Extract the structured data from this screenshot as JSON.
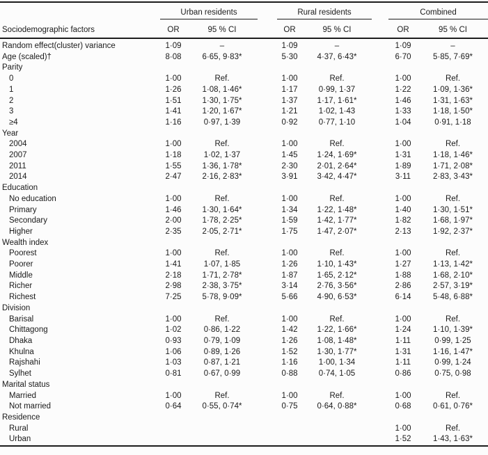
{
  "colors": {
    "rule": "#1c1c1c",
    "text": "#1a1a1a",
    "background": "#fcfcfc"
  },
  "table": {
    "groups": [
      "Urban residents",
      "Rural residents",
      "Combined"
    ],
    "header": {
      "factor_label": "Sociodemographic factors",
      "or_label": "OR",
      "ci_label": "95 % CI"
    },
    "rows": [
      {
        "label": "Random effect(cluster) variance",
        "indent": 0,
        "cells": [
          "1·09",
          "–",
          "1·09",
          "–",
          "1·09",
          "–"
        ]
      },
      {
        "label": "Age (scaled)†",
        "indent": 0,
        "cells": [
          "8·08",
          "6·65, 9·83*",
          "5·30",
          "4·37, 6·43*",
          "6·70",
          "5·85, 7·69*"
        ]
      },
      {
        "label": "Parity",
        "indent": 0,
        "cells": [
          "",
          "",
          "",
          "",
          "",
          ""
        ]
      },
      {
        "label": "0",
        "indent": 1,
        "cells": [
          "1·00",
          "Ref.",
          "1·00",
          "Ref.",
          "1·00",
          "Ref."
        ]
      },
      {
        "label": "1",
        "indent": 1,
        "cells": [
          "1·26",
          "1·08, 1·46*",
          "1·17",
          "0·99, 1·37",
          "1·22",
          "1·09, 1·36*"
        ]
      },
      {
        "label": "2",
        "indent": 1,
        "cells": [
          "1·51",
          "1·30, 1·75*",
          "1·37",
          "1·17, 1·61*",
          "1·46",
          "1·31, 1·63*"
        ]
      },
      {
        "label": "3",
        "indent": 1,
        "cells": [
          "1·41",
          "1·20, 1·67*",
          "1·21",
          "1·02, 1·43",
          "1·33",
          "1·18, 1·50*"
        ]
      },
      {
        "label": "≥4",
        "indent": 1,
        "cells": [
          "1·16",
          "0·97, 1·39",
          "0·92",
          "0·77, 1·10",
          "1·04",
          "0·91, 1·18"
        ]
      },
      {
        "label": "Year",
        "indent": 0,
        "cells": [
          "",
          "",
          "",
          "",
          "",
          ""
        ]
      },
      {
        "label": "2004",
        "indent": 1,
        "cells": [
          "1·00",
          "Ref.",
          "1·00",
          "Ref.",
          "1·00",
          "Ref."
        ]
      },
      {
        "label": "2007",
        "indent": 1,
        "cells": [
          "1·18",
          "1·02, 1·37",
          "1·45",
          "1·24, 1·69*",
          "1·31",
          "1·18, 1·46*"
        ]
      },
      {
        "label": "2011",
        "indent": 1,
        "cells": [
          "1·55",
          "1·36, 1·78*",
          "2·30",
          "2·01, 2·64*",
          "1·89",
          "1·71, 2·08*"
        ]
      },
      {
        "label": "2014",
        "indent": 1,
        "cells": [
          "2·47",
          "2·16, 2·83*",
          "3·91",
          "3·42, 4·47*",
          "3·11",
          "2·83, 3·43*"
        ]
      },
      {
        "label": "Education",
        "indent": 0,
        "cells": [
          "",
          "",
          "",
          "",
          "",
          ""
        ]
      },
      {
        "label": "No education",
        "indent": 1,
        "cells": [
          "1·00",
          "Ref.",
          "1·00",
          "Ref.",
          "1·00",
          "Ref."
        ]
      },
      {
        "label": "Primary",
        "indent": 1,
        "cells": [
          "1·46",
          "1·30, 1·64*",
          "1·34",
          "1·22, 1·48*",
          "1·40",
          "1·30, 1·51*"
        ]
      },
      {
        "label": "Secondary",
        "indent": 1,
        "cells": [
          "2·00",
          "1·78, 2·25*",
          "1·59",
          "1·42, 1·77*",
          "1·82",
          "1·68, 1·97*"
        ]
      },
      {
        "label": "Higher",
        "indent": 1,
        "cells": [
          "2·35",
          "2·05, 2·71*",
          "1·75",
          "1·47, 2·07*",
          "2·13",
          "1·92, 2·37*"
        ]
      },
      {
        "label": "Wealth index",
        "indent": 0,
        "cells": [
          "",
          "",
          "",
          "",
          "",
          ""
        ]
      },
      {
        "label": "Poorest",
        "indent": 1,
        "cells": [
          "1·00",
          "Ref.",
          "1·00",
          "Ref.",
          "1·00",
          "Ref."
        ]
      },
      {
        "label": "Poorer",
        "indent": 1,
        "cells": [
          "1·41",
          "1·07, 1·85",
          "1·26",
          "1·10, 1·43*",
          "1·27",
          "1·13, 1·42*"
        ]
      },
      {
        "label": "Middle",
        "indent": 1,
        "cells": [
          "2·18",
          "1·71, 2·78*",
          "1·87",
          "1·65, 2·12*",
          "1·88",
          "1·68, 2·10*"
        ]
      },
      {
        "label": "Richer",
        "indent": 1,
        "cells": [
          "2·98",
          "2·38, 3·75*",
          "3·14",
          "2·76, 3·56*",
          "2·86",
          "2·57, 3·19*"
        ]
      },
      {
        "label": "Richest",
        "indent": 1,
        "cells": [
          "7·25",
          "5·78, 9·09*",
          "5·66",
          "4·90, 6·53*",
          "6·14",
          "5·48, 6·88*"
        ]
      },
      {
        "label": "Division",
        "indent": 0,
        "cells": [
          "",
          "",
          "",
          "",
          "",
          ""
        ]
      },
      {
        "label": "Barisal",
        "indent": 1,
        "cells": [
          "1·00",
          "Ref.",
          "1·00",
          "Ref.",
          "1·00",
          "Ref."
        ]
      },
      {
        "label": "Chittagong",
        "indent": 1,
        "cells": [
          "1·02",
          "0·86, 1·22",
          "1·42",
          "1·22, 1·66*",
          "1·24",
          "1·10, 1·39*"
        ]
      },
      {
        "label": "Dhaka",
        "indent": 1,
        "cells": [
          "0·93",
          "0·79, 1·09",
          "1·26",
          "1·08, 1·48*",
          "1·11",
          "0·99, 1·25"
        ]
      },
      {
        "label": "Khulna",
        "indent": 1,
        "cells": [
          "1·06",
          "0·89, 1·26",
          "1·52",
          "1·30, 1·77*",
          "1·31",
          "1·16, 1·47*"
        ]
      },
      {
        "label": "Rajshahi",
        "indent": 1,
        "cells": [
          "1·03",
          "0·87, 1·21",
          "1·16",
          "1·00, 1·34",
          "1·11",
          "0·99, 1·24"
        ]
      },
      {
        "label": "Sylhet",
        "indent": 1,
        "cells": [
          "0·81",
          "0·67, 0·99",
          "0·88",
          "0·74, 1·05",
          "0·86",
          "0·75, 0·98"
        ]
      },
      {
        "label": "Marital status",
        "indent": 0,
        "cells": [
          "",
          "",
          "",
          "",
          "",
          ""
        ]
      },
      {
        "label": "Married",
        "indent": 1,
        "cells": [
          "1·00",
          "Ref.",
          "1·00",
          "Ref.",
          "1·00",
          "Ref."
        ]
      },
      {
        "label": "Not married",
        "indent": 1,
        "cells": [
          "0·64",
          "0·55, 0·74*",
          "0·75",
          "0·64, 0·88*",
          "0·68",
          "0·61, 0·76*"
        ]
      },
      {
        "label": "Residence",
        "indent": 0,
        "cells": [
          "",
          "",
          "",
          "",
          "",
          ""
        ]
      },
      {
        "label": "Rural",
        "indent": 1,
        "cells": [
          "",
          "",
          "",
          "",
          "1·00",
          "Ref."
        ]
      },
      {
        "label": "Urban",
        "indent": 1,
        "cells": [
          "",
          "",
          "",
          "",
          "1·52",
          "1·43, 1·63*"
        ]
      }
    ]
  }
}
